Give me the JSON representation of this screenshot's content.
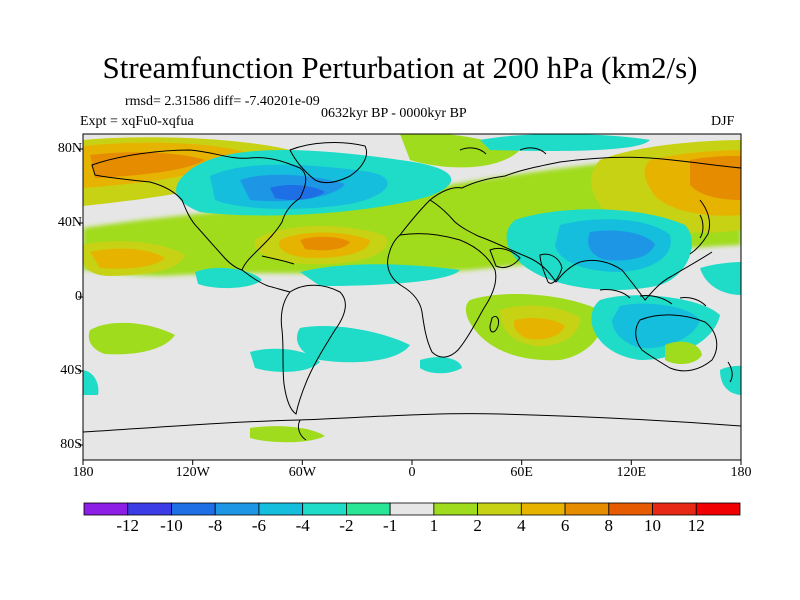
{
  "title": "Streamfunction Perturbation at 200 hPa (km2/s)",
  "stats": "rmsd= 2.31586 diff= -7.40201e-09",
  "period": "0632kyr BP - 0000kyr BP",
  "experiment": "Expt = xqFu0-xqfua",
  "season": "DJF",
  "x_ticks": [
    "180",
    "120W",
    "60W",
    "0",
    "60E",
    "120E",
    "180"
  ],
  "y_ticks": [
    "80N",
    "40N",
    "0",
    "40S",
    "80S"
  ],
  "colorbar": {
    "labels": [
      "-12",
      "-10",
      "-8",
      "-6",
      "-4",
      "-2",
      "-1",
      "1",
      "2",
      "4",
      "6",
      "8",
      "10",
      "12"
    ],
    "colors": [
      "#8c1ee6",
      "#3c3ce6",
      "#1e6ee6",
      "#1e96e6",
      "#14bedc",
      "#1edcc8",
      "#28e696",
      "#e6e6e6",
      "#a0dc1e",
      "#c8d214",
      "#e6b400",
      "#e68c00",
      "#e65a00",
      "#e62814",
      "#f00000"
    ]
  }
}
